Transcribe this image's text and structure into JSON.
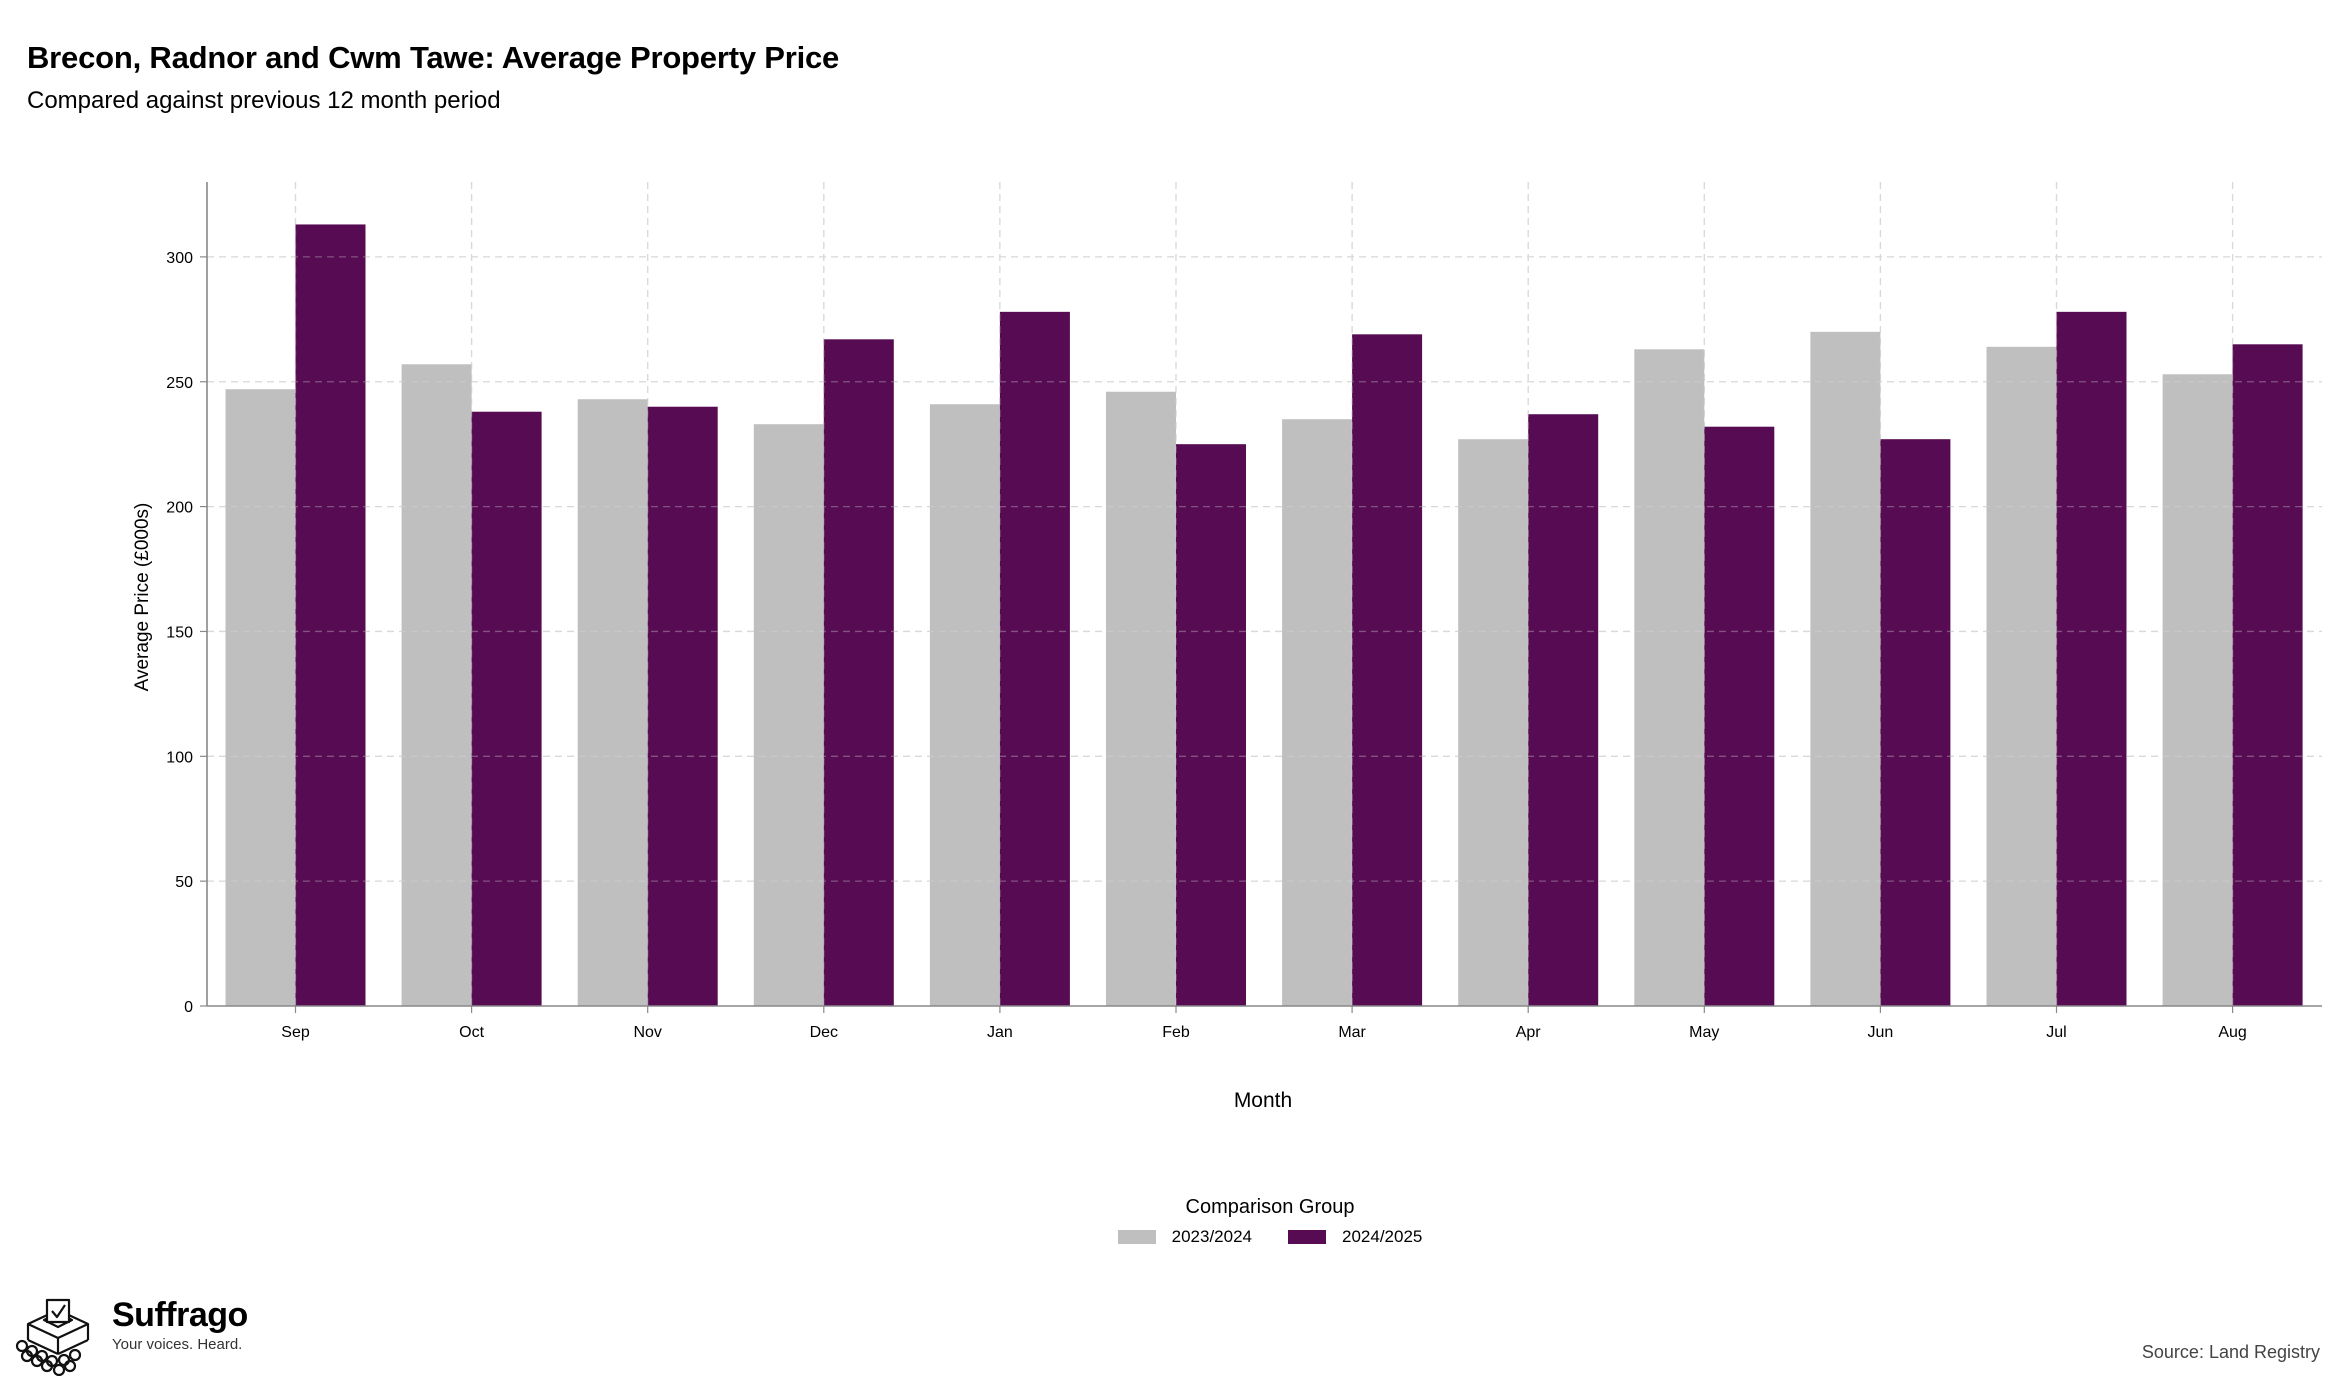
{
  "header": {
    "title": "Brecon, Radnor and Cwm Tawe: Average Property Price",
    "subtitle": "Compared against previous 12 month period"
  },
  "chart_data": {
    "type": "bar",
    "title": "Brecon, Radnor and Cwm Tawe: Average Property Price",
    "subtitle": "Compared against previous 12 month period",
    "xlabel": "Month",
    "ylabel": "Average Price (£000s)",
    "categories": [
      "Sep",
      "Oct",
      "Nov",
      "Dec",
      "Jan",
      "Feb",
      "Mar",
      "Apr",
      "May",
      "Jun",
      "Jul",
      "Aug"
    ],
    "series": [
      {
        "name": "2023/2024",
        "color": "#bfbfbf",
        "values": [
          247,
          257,
          243,
          233,
          241,
          246,
          235,
          227,
          263,
          270,
          264,
          253
        ]
      },
      {
        "name": "2024/2025",
        "color": "#560b52",
        "values": [
          313,
          238,
          240,
          267,
          278,
          225,
          269,
          237,
          232,
          227,
          278,
          265
        ]
      }
    ],
    "ylim": [
      0,
      330
    ],
    "yticks": [
      0,
      50,
      100,
      150,
      200,
      250,
      300
    ],
    "grid": true,
    "legend": {
      "title": "Comparison Group",
      "placement": "bottom-center"
    }
  },
  "legend": {
    "title": "Comparison Group",
    "items": [
      {
        "label": "2023/2024",
        "color": "#bfbfbf"
      },
      {
        "label": "2024/2025",
        "color": "#560b52"
      }
    ]
  },
  "brand": {
    "name": "Suffrago",
    "tagline": "Your voices. Heard."
  },
  "footer": {
    "source": "Source: Land Registry"
  }
}
